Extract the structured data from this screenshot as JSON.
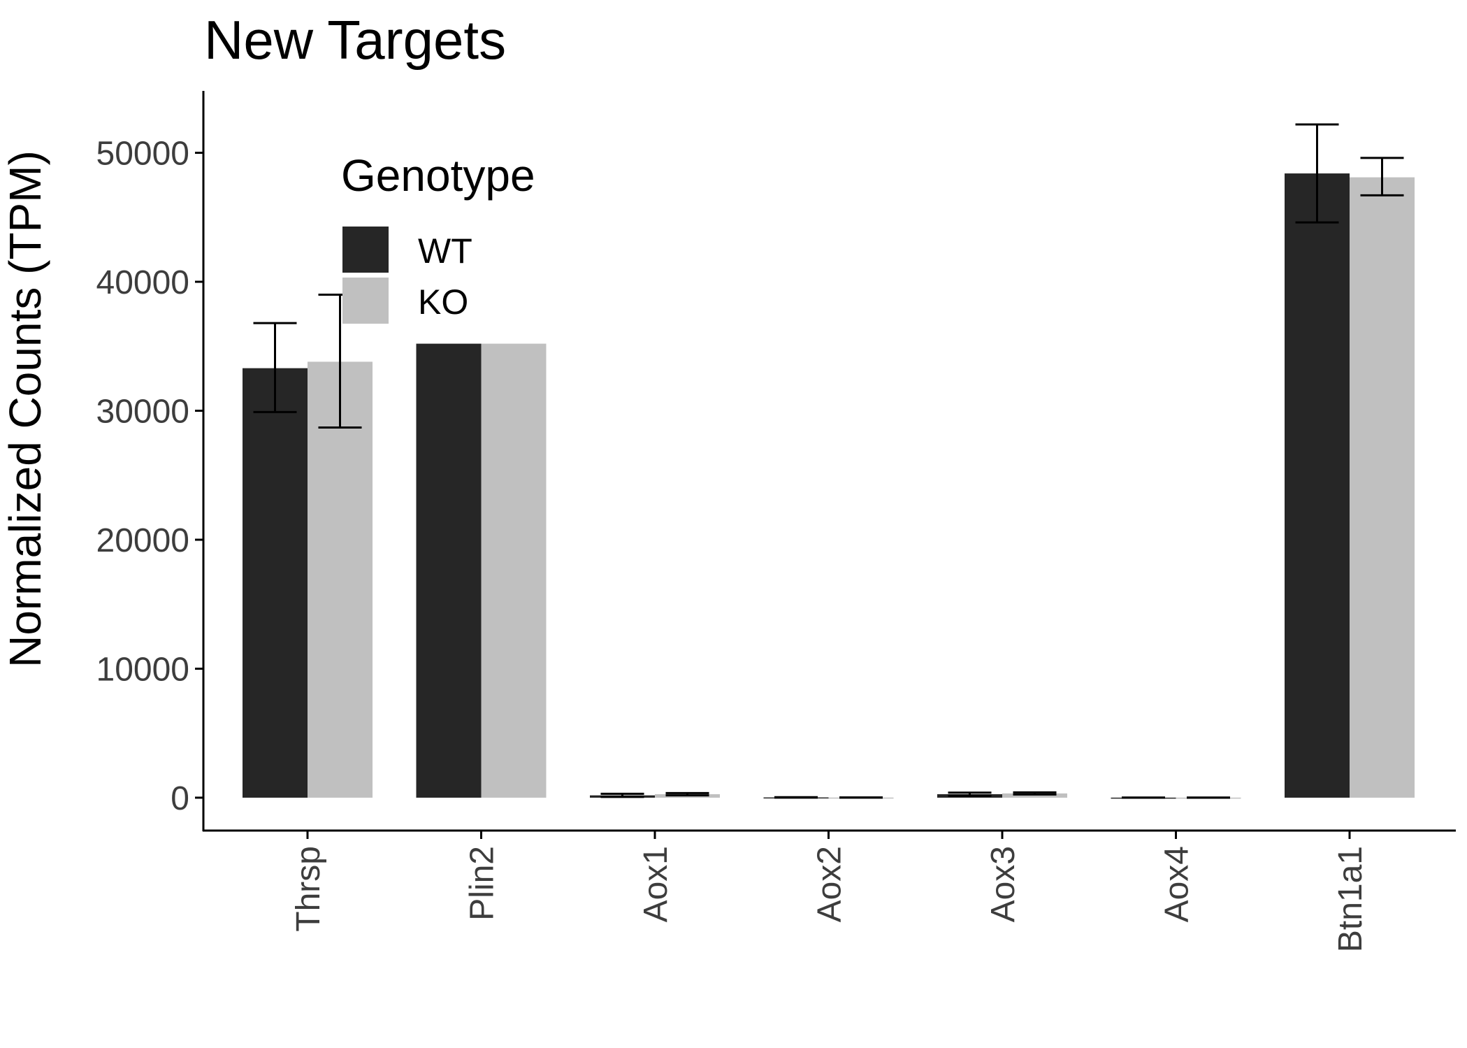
{
  "chart_data": {
    "type": "bar",
    "title": "New Targets",
    "xlabel": "",
    "ylabel": "Normalized Counts (TPM)",
    "categories": [
      "Thrsp",
      "Plin2",
      "Aox1",
      "Aox2",
      "Aox3",
      "Aox4",
      "Btn1a1"
    ],
    "series": [
      {
        "name": "WT",
        "color": "#262626",
        "values": [
          33300,
          35200,
          180,
          20,
          270,
          5,
          48400
        ],
        "error_low": [
          29900,
          null,
          60,
          5,
          150,
          0,
          44600
        ],
        "error_high": [
          36800,
          null,
          300,
          35,
          390,
          10,
          52200
        ]
      },
      {
        "name": "KO",
        "color": "#c0c0c0",
        "values": [
          33800,
          35200,
          270,
          10,
          330,
          5,
          48100
        ],
        "error_low": [
          28700,
          null,
          180,
          5,
          250,
          0,
          46700
        ],
        "error_high": [
          39000,
          null,
          360,
          15,
          410,
          10,
          49600
        ]
      }
    ],
    "ylim": [
      -2550,
      54800
    ],
    "yticks": [
      "0",
      "10000",
      "20000",
      "30000",
      "40000",
      "50000"
    ],
    "legend": {
      "title": "Genotype",
      "position": "top-left-inside"
    },
    "grid": false
  }
}
